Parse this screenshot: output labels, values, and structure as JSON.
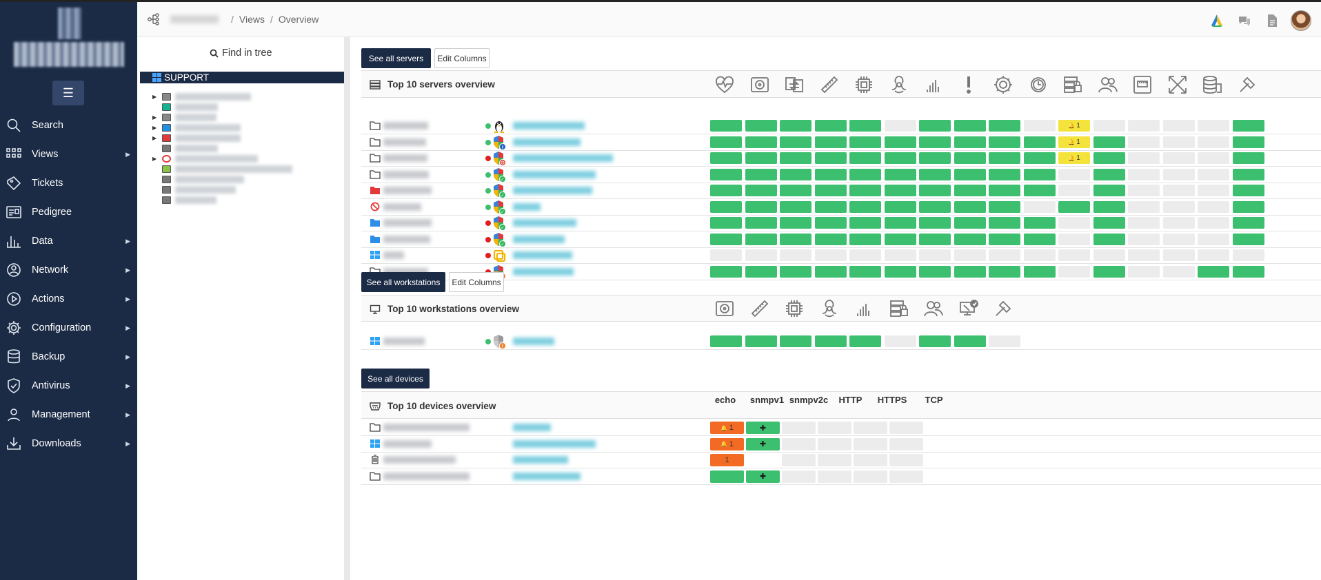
{
  "breadcrumb": {
    "views": "Views",
    "sep": "/",
    "overview": "Overview"
  },
  "sidebar": {
    "menu_icon": "☰",
    "items": [
      {
        "label": "Search",
        "icon": "search-icon",
        "sub": false
      },
      {
        "label": "Views",
        "icon": "grid-icon",
        "sub": true
      },
      {
        "label": "Tickets",
        "icon": "ticket-icon",
        "sub": false
      },
      {
        "label": "Pedigree",
        "icon": "id-card-icon",
        "sub": false
      },
      {
        "label": "Data",
        "icon": "bar-chart-icon",
        "sub": true
      },
      {
        "label": "Network",
        "icon": "network-icon",
        "sub": true
      },
      {
        "label": "Actions",
        "icon": "play-icon",
        "sub": true
      },
      {
        "label": "Configuration",
        "icon": "gear-icon",
        "sub": true
      },
      {
        "label": "Backup",
        "icon": "database-icon",
        "sub": true
      },
      {
        "label": "Antivirus",
        "icon": "shield-icon",
        "sub": true
      },
      {
        "label": "Management",
        "icon": "users-icon",
        "sub": true
      },
      {
        "label": "Downloads",
        "icon": "download-icon",
        "sub": true
      }
    ]
  },
  "tree": {
    "find_label": "Find in tree",
    "root_label": "SUPPORT"
  },
  "servers": {
    "see_all": "See all servers",
    "edit_columns": "Edit Columns",
    "title": "Top 10 servers overview",
    "columns": [
      "heart-icon",
      "disk-icon",
      "sync-icon",
      "memory-icon",
      "cpu-icon",
      "biohazard-icon",
      "signal-bars-icon",
      "alert-icon",
      "gear-icon",
      "clock-gear-icon",
      "server-lock-icon",
      "users-icon",
      "network-port-icon",
      "expand-icon",
      "database-stack-icon",
      "tool-icon"
    ],
    "badge": "1",
    "rows": [
      {
        "icon": "folder",
        "status": "green",
        "shield": "linux",
        "cells": [
          "g",
          "g",
          "g",
          "g",
          "g",
          "e",
          "g",
          "g",
          "g",
          "e",
          "y",
          "e",
          "e",
          "e",
          "e",
          "g"
        ]
      },
      {
        "icon": "folder",
        "status": "green",
        "shield": "info",
        "cells": [
          "g",
          "g",
          "g",
          "g",
          "g",
          "g",
          "g",
          "g",
          "g",
          "g",
          "y",
          "g",
          "e",
          "e",
          "e",
          "g"
        ]
      },
      {
        "icon": "folder",
        "status": "red",
        "shield": "error",
        "cells": [
          "g",
          "g",
          "g",
          "g",
          "g",
          "g",
          "g",
          "g",
          "g",
          "g",
          "y",
          "g",
          "e",
          "e",
          "e",
          "g"
        ]
      },
      {
        "icon": "folder",
        "status": "green",
        "shield": "ok",
        "cells": [
          "g",
          "g",
          "g",
          "g",
          "g",
          "g",
          "g",
          "g",
          "g",
          "g",
          "e",
          "g",
          "e",
          "e",
          "e",
          "g"
        ]
      },
      {
        "icon": "folder-red",
        "status": "green",
        "shield": "ok",
        "cells": [
          "g",
          "g",
          "g",
          "g",
          "g",
          "g",
          "g",
          "g",
          "g",
          "g",
          "e",
          "g",
          "e",
          "e",
          "e",
          "g"
        ]
      },
      {
        "icon": "blocked",
        "status": "green",
        "shield": "ok",
        "cells": [
          "g",
          "g",
          "g",
          "g",
          "g",
          "g",
          "g",
          "g",
          "g",
          "e",
          "g",
          "g",
          "e",
          "e",
          "e",
          "g"
        ]
      },
      {
        "icon": "folder-blue",
        "status": "red",
        "shield": "ok",
        "cells": [
          "g",
          "g",
          "g",
          "g",
          "g",
          "g",
          "g",
          "g",
          "g",
          "g",
          "e",
          "g",
          "e",
          "e",
          "e",
          "g"
        ]
      },
      {
        "icon": "folder-blue",
        "status": "red",
        "shield": "ok",
        "cells": [
          "g",
          "g",
          "g",
          "g",
          "g",
          "g",
          "g",
          "g",
          "g",
          "g",
          "e",
          "g",
          "e",
          "e",
          "e",
          "g"
        ]
      },
      {
        "icon": "windows",
        "status": "red",
        "shield": "vmware",
        "cells": [
          "e",
          "e",
          "e",
          "e",
          "e",
          "e",
          "e",
          "e",
          "e",
          "e",
          "e",
          "e",
          "e",
          "e",
          "e",
          "e"
        ]
      },
      {
        "icon": "folder",
        "status": "red",
        "shield": "warn",
        "cells": [
          "g",
          "g",
          "g",
          "g",
          "g",
          "g",
          "g",
          "g",
          "g",
          "g",
          "e",
          "g",
          "e",
          "e",
          "g",
          "g"
        ]
      }
    ]
  },
  "workstations": {
    "see_all": "See all workstations",
    "edit_columns": "Edit Columns",
    "title": "Top 10 workstations overview",
    "columns": [
      "disk-icon",
      "memory-icon",
      "cpu-icon",
      "biohazard-icon",
      "signal-bars-icon",
      "server-lock-icon",
      "users-icon",
      "monitor-check-icon",
      "tool-icon"
    ],
    "rows": [
      {
        "icon": "windows",
        "status": "green",
        "shield": "warn-grey",
        "cells": [
          "g",
          "g",
          "g",
          "g",
          "g",
          "e",
          "g",
          "g",
          "e"
        ]
      }
    ]
  },
  "devices": {
    "see_all": "See all devices",
    "title": "Top 10 devices overview",
    "columns": [
      "echo",
      "snmpv1",
      "snmpv2c",
      "HTTP",
      "HTTPS",
      "TCP"
    ],
    "badge": "1",
    "plus": "✚",
    "rows": [
      {
        "icon": "folder",
        "cells": [
          "ob",
          "gp",
          "e",
          "e",
          "e",
          "e"
        ]
      },
      {
        "icon": "windows",
        "cells": [
          "ob",
          "gp",
          "e",
          "e",
          "e",
          "e"
        ]
      },
      {
        "icon": "trash",
        "cells": [
          "o",
          "n",
          "e",
          "e",
          "e",
          "e"
        ]
      },
      {
        "icon": "folder",
        "cells": [
          "g",
          "gp",
          "e",
          "e",
          "e",
          "e"
        ]
      }
    ]
  },
  "colors": {
    "sidebar": "#1b2b45",
    "ok": "#3cbf6e",
    "warn": "#f3e33a",
    "error": "#f26a23",
    "empty": "#ececec"
  }
}
